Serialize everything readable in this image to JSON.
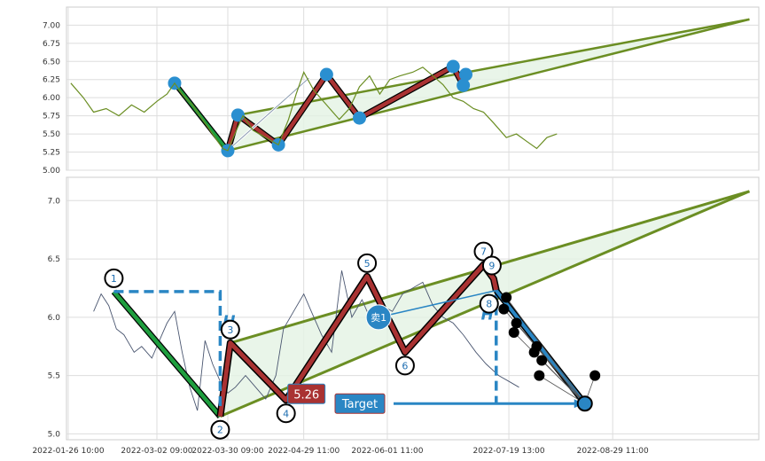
{
  "chart_data": [
    {
      "type": "line",
      "panel": "overview",
      "ylim": [
        5.0,
        7.2
      ],
      "y_ticks": [
        "5.00",
        "5.25",
        "5.50",
        "5.75",
        "6.00",
        "6.25",
        "6.50",
        "6.75",
        "7.00"
      ],
      "grid": true,
      "series": [
        {
          "color": "#6b8e23",
          "points": [
            [
              "2022-01-27",
              6.2
            ],
            [
              "2022-02-01",
              6.0
            ],
            [
              "2022-02-05",
              5.8
            ],
            [
              "2022-02-10",
              5.85
            ],
            [
              "2022-02-15",
              5.75
            ],
            [
              "2022-02-20",
              5.9
            ],
            [
              "2022-02-25",
              5.8
            ],
            [
              "2022-03-02",
              5.95
            ],
            [
              "2022-03-06",
              6.05
            ],
            [
              "2022-03-09",
              6.2
            ],
            [
              "2022-03-12",
              6.05
            ],
            [
              "2022-03-16",
              5.9
            ],
            [
              "2022-03-20",
              5.7
            ],
            [
              "2022-03-24",
              5.5
            ],
            [
              "2022-03-28",
              5.3
            ],
            [
              "2022-03-30",
              5.27
            ],
            [
              "2022-04-03",
              5.6
            ],
            [
              "2022-04-05",
              5.75
            ],
            [
              "2022-04-09",
              5.55
            ],
            [
              "2022-04-14",
              5.45
            ],
            [
              "2022-04-19",
              5.35
            ],
            [
              "2022-04-23",
              5.7
            ],
            [
              "2022-04-26",
              6.05
            ],
            [
              "2022-04-29",
              6.35
            ],
            [
              "2022-05-03",
              6.1
            ],
            [
              "2022-05-08",
              5.9
            ],
            [
              "2022-05-13",
              5.7
            ],
            [
              "2022-05-17",
              5.85
            ],
            [
              "2022-05-21",
              6.15
            ],
            [
              "2022-05-25",
              6.3
            ],
            [
              "2022-05-29",
              6.05
            ],
            [
              "2022-06-02",
              6.25
            ],
            [
              "2022-06-06",
              6.3
            ],
            [
              "2022-06-11",
              6.35
            ],
            [
              "2022-06-15",
              6.42
            ],
            [
              "2022-06-19",
              6.3
            ],
            [
              "2022-06-23",
              6.18
            ],
            [
              "2022-06-27",
              6.0
            ],
            [
              "2022-07-01",
              5.95
            ],
            [
              "2022-07-05",
              5.85
            ],
            [
              "2022-07-09",
              5.8
            ],
            [
              "2022-07-13",
              5.65
            ],
            [
              "2022-07-18",
              5.45
            ],
            [
              "2022-07-22",
              5.5
            ],
            [
              "2022-07-26",
              5.4
            ],
            [
              "2022-07-30",
              5.3
            ],
            [
              "2022-08-03",
              5.45
            ],
            [
              "2022-08-07",
              5.5
            ]
          ]
        }
      ]
    },
    {
      "type": "line",
      "panel": "detail",
      "ylim": [
        4.95,
        7.2
      ],
      "y_ticks": [
        "5.0",
        "5.5",
        "6.0",
        "6.5",
        "7.0"
      ],
      "x_ticks": [
        "2022-01-26 10:00",
        "2022-03-02 09:00",
        "2022-03-30 09:00",
        "2022-04-29 11:00",
        "2022-06-01 11:00",
        "2022-07-19 13:00",
        "2022-08-29 11:00"
      ],
      "grid": true,
      "series": [
        {
          "color": "#4a5670",
          "points": [
            [
              "2022-02-05",
              6.05
            ],
            [
              "2022-02-08",
              6.2
            ],
            [
              "2022-02-11",
              6.1
            ],
            [
              "2022-02-14",
              5.9
            ],
            [
              "2022-02-17",
              5.85
            ],
            [
              "2022-02-21",
              5.7
            ],
            [
              "2022-02-24",
              5.75
            ],
            [
              "2022-02-28",
              5.65
            ],
            [
              "2022-03-03",
              5.8
            ],
            [
              "2022-03-06",
              5.95
            ],
            [
              "2022-03-09",
              6.05
            ],
            [
              "2022-03-12",
              5.7
            ],
            [
              "2022-03-15",
              5.4
            ],
            [
              "2022-03-18",
              5.2
            ],
            [
              "2022-03-21",
              5.8
            ],
            [
              "2022-03-24",
              5.6
            ],
            [
              "2022-03-27",
              5.45
            ],
            [
              "2022-03-30",
              5.35
            ],
            [
              "2022-04-02",
              5.4
            ],
            [
              "2022-04-06",
              5.5
            ],
            [
              "2022-04-10",
              5.4
            ],
            [
              "2022-04-14",
              5.3
            ],
            [
              "2022-04-18",
              5.5
            ],
            [
              "2022-04-21",
              5.9
            ],
            [
              "2022-04-25",
              6.05
            ],
            [
              "2022-04-29",
              6.2
            ],
            [
              "2022-05-02",
              6.05
            ],
            [
              "2022-05-06",
              5.85
            ],
            [
              "2022-05-10",
              5.7
            ],
            [
              "2022-05-14",
              6.4
            ],
            [
              "2022-05-18",
              6.0
            ],
            [
              "2022-05-22",
              6.15
            ],
            [
              "2022-05-26",
              5.95
            ],
            [
              "2022-05-30",
              6.1
            ],
            [
              "2022-06-03",
              6.05
            ],
            [
              "2022-06-07",
              6.2
            ],
            [
              "2022-06-11",
              6.25
            ],
            [
              "2022-06-15",
              6.3
            ],
            [
              "2022-06-19",
              6.1
            ],
            [
              "2022-06-23",
              6.0
            ],
            [
              "2022-06-27",
              5.95
            ],
            [
              "2022-07-01",
              5.85
            ],
            [
              "2022-07-06",
              5.7
            ],
            [
              "2022-07-10",
              5.6
            ],
            [
              "2022-07-15",
              5.5
            ],
            [
              "2022-07-19",
              5.45
            ],
            [
              "2022-07-23",
              5.4
            ]
          ]
        }
      ],
      "pattern_points": [
        {
          "label": "1",
          "x": "2022-02-13",
          "y": 6.22
        },
        {
          "label": "2",
          "x": "2022-03-27",
          "y": 5.15
        },
        {
          "label": "3",
          "x": "2022-03-31",
          "y": 5.78
        },
        {
          "label": "4",
          "x": "2022-04-22",
          "y": 5.29
        },
        {
          "label": "5",
          "x": "2022-05-24",
          "y": 6.35
        },
        {
          "label": "6",
          "x": "2022-06-08",
          "y": 5.7
        },
        {
          "label": "7",
          "x": "2022-07-09",
          "y": 6.45
        },
        {
          "label": "8",
          "x": "2022-07-14",
          "y": 6.23
        },
        {
          "label": "9",
          "x": "2022-07-13",
          "y": 6.33
        }
      ],
      "channel": {
        "upper": [
          [
            "2022-03-31",
            5.78
          ],
          [
            "2022-10-22",
            7.08
          ]
        ],
        "lower": [
          [
            "2022-03-27",
            5.15
          ],
          [
            "2022-10-22",
            7.08
          ]
        ]
      },
      "annotations": {
        "sell_label": "卖1",
        "price_label": "5.26",
        "target_label": "Target",
        "target_value": 5.26,
        "measure_glyph": "H",
        "projection_end": [
          "2022-08-18",
          5.26
        ]
      },
      "black_dots": [
        [
          "2022-07-18",
          6.17
        ],
        [
          "2022-07-17",
          6.07
        ],
        [
          "2022-07-22",
          5.95
        ],
        [
          "2022-07-21",
          5.87
        ],
        [
          "2022-07-30",
          5.75
        ],
        [
          "2022-07-29",
          5.7
        ],
        [
          "2022-08-01",
          5.63
        ],
        [
          "2022-07-31",
          5.5
        ],
        [
          "2022-08-22",
          5.5
        ]
      ]
    }
  ]
}
